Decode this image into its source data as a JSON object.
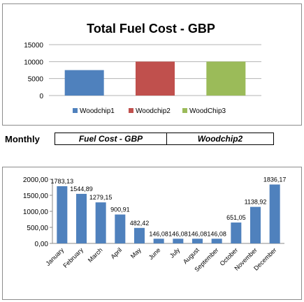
{
  "chart_data": [
    {
      "type": "bar",
      "title": "Total Fuel Cost - GBP",
      "categories": [
        "Woodchip1",
        "Woodchip2",
        "WoodChip3"
      ],
      "values": [
        7500,
        10000,
        10000
      ],
      "colors": [
        "#4f81bd",
        "#c0504d",
        "#9bbb59"
      ],
      "ylim": [
        0,
        15000
      ],
      "yticks": [
        "0",
        "5000",
        "10000",
        "15000"
      ],
      "grid": true,
      "legend": "bottom"
    },
    {
      "type": "bar",
      "categories": [
        "January",
        "February",
        "March",
        "April",
        "May",
        "June",
        "July",
        "August",
        "September",
        "October",
        "November",
        "December"
      ],
      "values": [
        1783.13,
        1544.89,
        1279.15,
        900.91,
        482.42,
        146.08,
        146.08,
        146.08,
        146.08,
        651.05,
        1138.92,
        1836.17
      ],
      "data_labels": [
        "1783,13",
        "1544,89",
        "1279,15",
        "900,91",
        "482,42",
        "146,08",
        "146,08",
        "146,08",
        "146,08",
        "651,05",
        "1138,92",
        "1836,17"
      ],
      "ylim": [
        0,
        2000
      ],
      "yticks": [
        "0,00",
        "500,00",
        "1000,00",
        "1500,00",
        "2000,00"
      ],
      "color": "#4f81bd",
      "grid": false
    }
  ],
  "monthly_bar": {
    "label": "Monthly",
    "cells": [
      "Fuel Cost - GBP",
      "Woodchip2"
    ]
  }
}
